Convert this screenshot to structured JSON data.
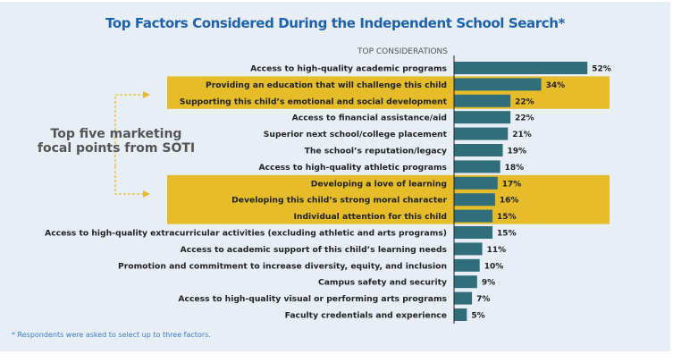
{
  "chart_data": {
    "type": "bar",
    "orientation": "horizontal",
    "title": "Top Factors Considered During the Independent School Search*",
    "column_header": "TOP CONSIDERATIONS",
    "categories": [
      "Access to high-quality academic programs",
      "Providing an education that will challenge this child",
      "Supporting this child’s emotional and social development",
      "Access to financial assistance/aid",
      "Superior next school/college placement",
      "The school’s reputation/legacy",
      "Access to high-quality athletic programs",
      "Developing a love of learning",
      "Developing this child’s strong moral character",
      "Individual attention for this child",
      "Access to high-quality extracurricular activities (excluding athletic and arts programs)",
      "Access to academic support of this child’s learning needs",
      "Promotion and commitment to increase diversity, equity, and inclusion",
      "Campus safety and security",
      "Access to high-quality visual or performing arts programs",
      "Faculty credentials and experience"
    ],
    "values": [
      52,
      34,
      22,
      22,
      21,
      19,
      18,
      17,
      16,
      15,
      15,
      11,
      10,
      9,
      7,
      5
    ],
    "value_suffix": "%",
    "highlighted_groups": [
      [
        1,
        2
      ],
      [
        7,
        8,
        9
      ]
    ],
    "annotation": "Top five marketing focal points from SOTI",
    "footnote": "* Respondents were asked to select up to three factors.",
    "colors": {
      "bar": "#2f6e7a",
      "highlight": "#e6bd28",
      "title": "#1d62ad",
      "arrow": "#e6bd28"
    }
  }
}
